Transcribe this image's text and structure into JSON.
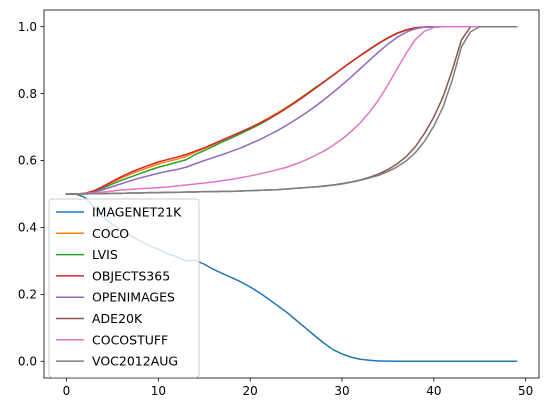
{
  "chart_data": {
    "type": "line",
    "title": "",
    "xlabel": "",
    "ylabel": "",
    "xlim": [
      -2.45,
      51.45
    ],
    "ylim": [
      -0.05,
      1.05
    ],
    "xticks": [
      0,
      10,
      20,
      30,
      40,
      50
    ],
    "yticks": [
      0.0,
      0.2,
      0.4,
      0.6,
      0.8,
      1.0
    ],
    "xtick_labels": [
      "0",
      "10",
      "20",
      "30",
      "40",
      "50"
    ],
    "ytick_labels": [
      "0.0",
      "0.2",
      "0.4",
      "0.6",
      "0.8",
      "1.0"
    ],
    "grid": false,
    "legend_position": "lower-left",
    "x": [
      0,
      1,
      2,
      3,
      4,
      5,
      6,
      7,
      8,
      9,
      10,
      11,
      12,
      13,
      14,
      15,
      16,
      17,
      18,
      19,
      20,
      21,
      22,
      23,
      24,
      25,
      26,
      27,
      28,
      29,
      30,
      31,
      32,
      33,
      34,
      35,
      36,
      37,
      38,
      39,
      40,
      41,
      42,
      43,
      44,
      45,
      46,
      47,
      48,
      49
    ],
    "series": [
      {
        "name": "IMAGENET21K",
        "color": "#1f77b4",
        "values": [
          0.5,
          0.5,
          0.49,
          0.46,
          0.43,
          0.41,
          0.39,
          0.375,
          0.36,
          0.345,
          0.335,
          0.322,
          0.312,
          0.3,
          0.302,
          0.29,
          0.275,
          0.262,
          0.25,
          0.237,
          0.222,
          0.205,
          0.186,
          0.166,
          0.146,
          0.123,
          0.1,
          0.077,
          0.055,
          0.035,
          0.022,
          0.012,
          0.006,
          0.003,
          0.001,
          0.0005,
          0.0002,
          0.0001,
          0,
          0,
          0,
          0,
          0,
          0,
          0,
          0,
          0,
          0,
          0,
          0
        ]
      },
      {
        "name": "COCO",
        "color": "#ff7f0e",
        "values": [
          0.5,
          0.5,
          0.502,
          0.508,
          0.52,
          0.535,
          0.548,
          0.56,
          0.57,
          0.58,
          0.59,
          0.597,
          0.604,
          0.612,
          0.625,
          0.636,
          0.648,
          0.66,
          0.672,
          0.685,
          0.698,
          0.712,
          0.727,
          0.743,
          0.76,
          0.778,
          0.797,
          0.816,
          0.835,
          0.855,
          0.875,
          0.895,
          0.914,
          0.932,
          0.95,
          0.966,
          0.98,
          0.99,
          0.996,
          0.999,
          1,
          1,
          1,
          1,
          1,
          1,
          1,
          1,
          1,
          1
        ]
      },
      {
        "name": "LVIS",
        "color": "#2ca02c",
        "values": [
          0.5,
          0.5,
          0.502,
          0.508,
          0.518,
          0.53,
          0.541,
          0.551,
          0.561,
          0.571,
          0.58,
          0.587,
          0.595,
          0.602,
          0.618,
          0.63,
          0.643,
          0.656,
          0.668,
          0.681,
          0.694,
          0.708,
          0.723,
          0.74,
          0.758,
          0.777,
          0.796,
          0.816,
          0.835,
          0.855,
          0.875,
          0.895,
          0.914,
          0.932,
          0.95,
          0.966,
          0.98,
          0.99,
          0.996,
          0.999,
          1,
          1,
          1,
          1,
          1,
          1,
          1,
          1,
          1,
          1
        ]
      },
      {
        "name": "OBJECTS365",
        "color": "#d62728",
        "values": [
          0.5,
          0.5,
          0.502,
          0.51,
          0.523,
          0.538,
          0.552,
          0.565,
          0.576,
          0.586,
          0.596,
          0.603,
          0.61,
          0.618,
          0.628,
          0.638,
          0.65,
          0.662,
          0.674,
          0.686,
          0.698,
          0.711,
          0.725,
          0.74,
          0.757,
          0.775,
          0.794,
          0.814,
          0.834,
          0.854,
          0.875,
          0.895,
          0.914,
          0.933,
          0.951,
          0.967,
          0.981,
          0.991,
          0.997,
          0.999,
          1,
          1,
          1,
          1,
          1,
          1,
          1,
          1,
          1,
          1
        ]
      },
      {
        "name": "OPENIMAGES",
        "color": "#9467bd",
        "values": [
          0.5,
          0.5,
          0.501,
          0.505,
          0.513,
          0.522,
          0.531,
          0.54,
          0.548,
          0.555,
          0.562,
          0.568,
          0.573,
          0.58,
          0.59,
          0.6,
          0.609,
          0.618,
          0.628,
          0.638,
          0.65,
          0.662,
          0.676,
          0.69,
          0.706,
          0.723,
          0.741,
          0.76,
          0.781,
          0.803,
          0.826,
          0.85,
          0.875,
          0.9,
          0.925,
          0.948,
          0.968,
          0.984,
          0.994,
          0.999,
          1,
          1,
          1,
          1,
          1,
          1,
          1,
          1,
          1,
          1
        ]
      },
      {
        "name": "ADE20K",
        "color": "#8c564b",
        "values": [
          0.5,
          0.5,
          0.5,
          0.501,
          0.501,
          0.502,
          0.502,
          0.503,
          0.503,
          0.504,
          0.504,
          0.505,
          0.505,
          0.506,
          0.506,
          0.507,
          0.507,
          0.508,
          0.508,
          0.509,
          0.51,
          0.511,
          0.512,
          0.513,
          0.515,
          0.517,
          0.519,
          0.521,
          0.524,
          0.527,
          0.531,
          0.536,
          0.542,
          0.55,
          0.56,
          0.573,
          0.59,
          0.612,
          0.642,
          0.682,
          0.73,
          0.79,
          0.87,
          0.96,
          1,
          1,
          1,
          1,
          1,
          1
        ]
      },
      {
        "name": "COCOSTUFF",
        "color": "#e377c2",
        "values": [
          0.5,
          0.5,
          0.501,
          0.503,
          0.506,
          0.509,
          0.512,
          0.514,
          0.516,
          0.517,
          0.519,
          0.521,
          0.524,
          0.527,
          0.53,
          0.533,
          0.536,
          0.54,
          0.544,
          0.549,
          0.554,
          0.56,
          0.566,
          0.573,
          0.58,
          0.59,
          0.601,
          0.614,
          0.628,
          0.645,
          0.664,
          0.687,
          0.713,
          0.745,
          0.782,
          0.826,
          0.874,
          0.921,
          0.962,
          0.987,
          0.998,
          1,
          1,
          1,
          1,
          1,
          1,
          1,
          1,
          1
        ]
      },
      {
        "name": "VOC2012AUG",
        "color": "#7f7f7f",
        "values": [
          0.5,
          0.5,
          0.5,
          0.501,
          0.501,
          0.502,
          0.502,
          0.503,
          0.503,
          0.504,
          0.504,
          0.505,
          0.505,
          0.506,
          0.506,
          0.507,
          0.507,
          0.508,
          0.508,
          0.509,
          0.51,
          0.511,
          0.512,
          0.513,
          0.515,
          0.517,
          0.519,
          0.521,
          0.523,
          0.526,
          0.53,
          0.535,
          0.541,
          0.548,
          0.556,
          0.567,
          0.581,
          0.599,
          0.624,
          0.658,
          0.703,
          0.76,
          0.84,
          0.94,
          0.985,
          1,
          1,
          1,
          1,
          1
        ]
      }
    ]
  }
}
